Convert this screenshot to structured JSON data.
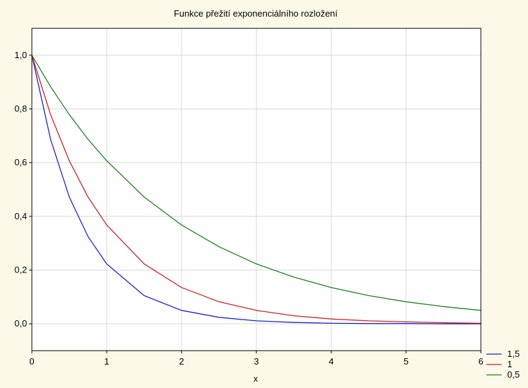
{
  "chart_data": {
    "type": "line",
    "title": "Funkce přežití exponenciálního rozložení",
    "xlabel": "x",
    "ylabel": "",
    "xlim": [
      0,
      6
    ],
    "ylim": [
      -0.1,
      1.1
    ],
    "x_ticks": [
      0,
      1,
      2,
      3,
      4,
      5,
      6
    ],
    "x_tick_labels": [
      "0",
      "1",
      "2",
      "3",
      "4",
      "5",
      "6"
    ],
    "y_ticks": [
      0.0,
      0.2,
      0.4,
      0.6,
      0.8,
      1.0
    ],
    "y_tick_labels": [
      "0,0",
      "0,2",
      "0,4",
      "0,6",
      "0,8",
      "1,0"
    ],
    "grid": true,
    "legend_position": "bottom-right, outside plot",
    "x": [
      0,
      0.25,
      0.5,
      0.75,
      1,
      1.5,
      2,
      2.5,
      3,
      3.5,
      4,
      4.5,
      5,
      5.5,
      6
    ],
    "series": [
      {
        "name": "1,5",
        "color": "#2020d0",
        "values": [
          1.0,
          0.687,
          0.472,
          0.325,
          0.223,
          0.105,
          0.05,
          0.024,
          0.011,
          0.005,
          0.002,
          0.001,
          0.001,
          0.0,
          0.0
        ]
      },
      {
        "name": "1",
        "color": "#d02020",
        "values": [
          1.0,
          0.779,
          0.607,
          0.472,
          0.368,
          0.223,
          0.135,
          0.082,
          0.05,
          0.03,
          0.018,
          0.011,
          0.007,
          0.004,
          0.002
        ]
      },
      {
        "name": "0,5",
        "color": "#208020",
        "values": [
          1.0,
          0.883,
          0.779,
          0.687,
          0.607,
          0.472,
          0.368,
          0.287,
          0.223,
          0.174,
          0.135,
          0.105,
          0.082,
          0.064,
          0.05
        ]
      }
    ]
  }
}
